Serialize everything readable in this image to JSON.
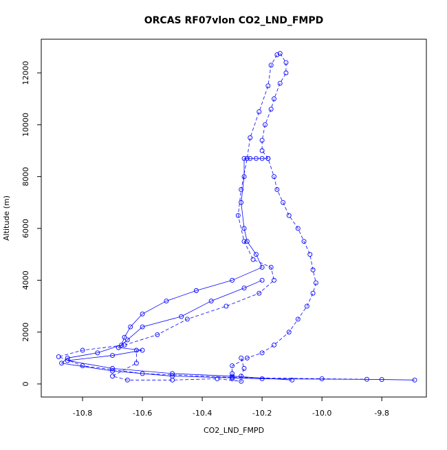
{
  "chart_data": {
    "type": "line",
    "title": "ORCAS RF07vlon CO2_LND_FMPD",
    "x_label": "CO2_LND_FMPD",
    "y_label": "Altitude (m)",
    "xlim": [
      -10.938,
      -9.651
    ],
    "ylim": [
      -505,
      13300
    ],
    "xticks": [
      -10.8,
      -10.6,
      -10.4,
      -10.2,
      {
        "value": -10,
        "label": "-10.0"
      },
      -9.8
    ],
    "yticks": [
      0,
      2000,
      4000,
      6000,
      8000,
      10000,
      12000
    ],
    "color": "#0000ff",
    "marker": "circle",
    "series": [
      {
        "dashed": true,
        "x": [
          -10.14,
          -10.12,
          -10.12,
          -10.14,
          -10.16,
          -10.17,
          -10.19,
          -10.2,
          -10.2,
          -10.18,
          -10.16,
          -10.15,
          -10.13,
          -10.11,
          -10.08,
          -10.06,
          -10.04,
          -10.03,
          -10.02,
          -10.03,
          -10.05,
          -10.08,
          -10.11,
          -10.16,
          -10.2,
          -10.25,
          -10.3,
          -10.3,
          -10.3
        ],
        "values": [
          12750,
          12400,
          12000,
          11600,
          11000,
          10600,
          10000,
          9400,
          9000,
          8700,
          8000,
          7500,
          7000,
          6500,
          6000,
          5500,
          5000,
          4400,
          3900,
          3500,
          3000,
          2500,
          2000,
          1500,
          1200,
          1000,
          700,
          400,
          200
        ]
      },
      {
        "dashed": false,
        "x": [
          -10.18,
          -10.2,
          -10.22,
          -10.24,
          -10.26,
          -10.26,
          -10.27,
          -10.26,
          -10.25,
          -10.22,
          -10.2,
          -10.3,
          -10.42,
          -10.52,
          -10.6,
          -10.64,
          -10.66,
          -10.67,
          -10.75,
          -10.85,
          -10.87,
          -10.7,
          -10.5,
          -10.2,
          -9.8,
          -9.69
        ],
        "values": [
          8700,
          8700,
          8700,
          8700,
          8700,
          8000,
          7000,
          6000,
          5500,
          5000,
          4500,
          4000,
          3600,
          3200,
          2700,
          2200,
          1800,
          1500,
          1200,
          1000,
          800,
          500,
          300,
          200,
          170,
          150
        ]
      },
      {
        "dashed": true,
        "x": [
          -10.15,
          -10.17,
          -10.18,
          -10.21,
          -10.24,
          -10.25,
          -10.27,
          -10.28,
          -10.26,
          -10.23,
          -10.17,
          -10.16,
          -10.21,
          -10.32,
          -10.45,
          -10.55,
          -10.66,
          -10.8,
          -10.88,
          -10.8,
          -10.6,
          -10.3,
          -10.0,
          -9.85
        ],
        "values": [
          12700,
          12300,
          11500,
          10500,
          9500,
          8700,
          7500,
          6500,
          5500,
          4800,
          4500,
          4000,
          3500,
          3000,
          2500,
          1900,
          1500,
          1300,
          1050,
          700,
          400,
          250,
          200,
          180
        ]
      },
      {
        "dashed": false,
        "x": [
          -10.2,
          -10.26,
          -10.37,
          -10.47,
          -10.6,
          -10.65,
          -10.68,
          -10.6,
          -10.7,
          -10.85,
          -10.7,
          -10.5,
          -10.3,
          -10.1
        ],
        "values": [
          4000,
          3700,
          3200,
          2600,
          2200,
          1700,
          1400,
          1300,
          1100,
          900,
          600,
          400,
          300,
          150
        ]
      },
      {
        "dashed": true,
        "x": [
          -10.27,
          -10.26,
          -10.27,
          -10.27,
          -10.35,
          -10.5,
          -10.65,
          -10.7,
          -10.62,
          -10.62
        ],
        "values": [
          1000,
          600,
          300,
          100,
          200,
          150,
          150,
          300,
          800,
          1300
        ]
      }
    ]
  }
}
